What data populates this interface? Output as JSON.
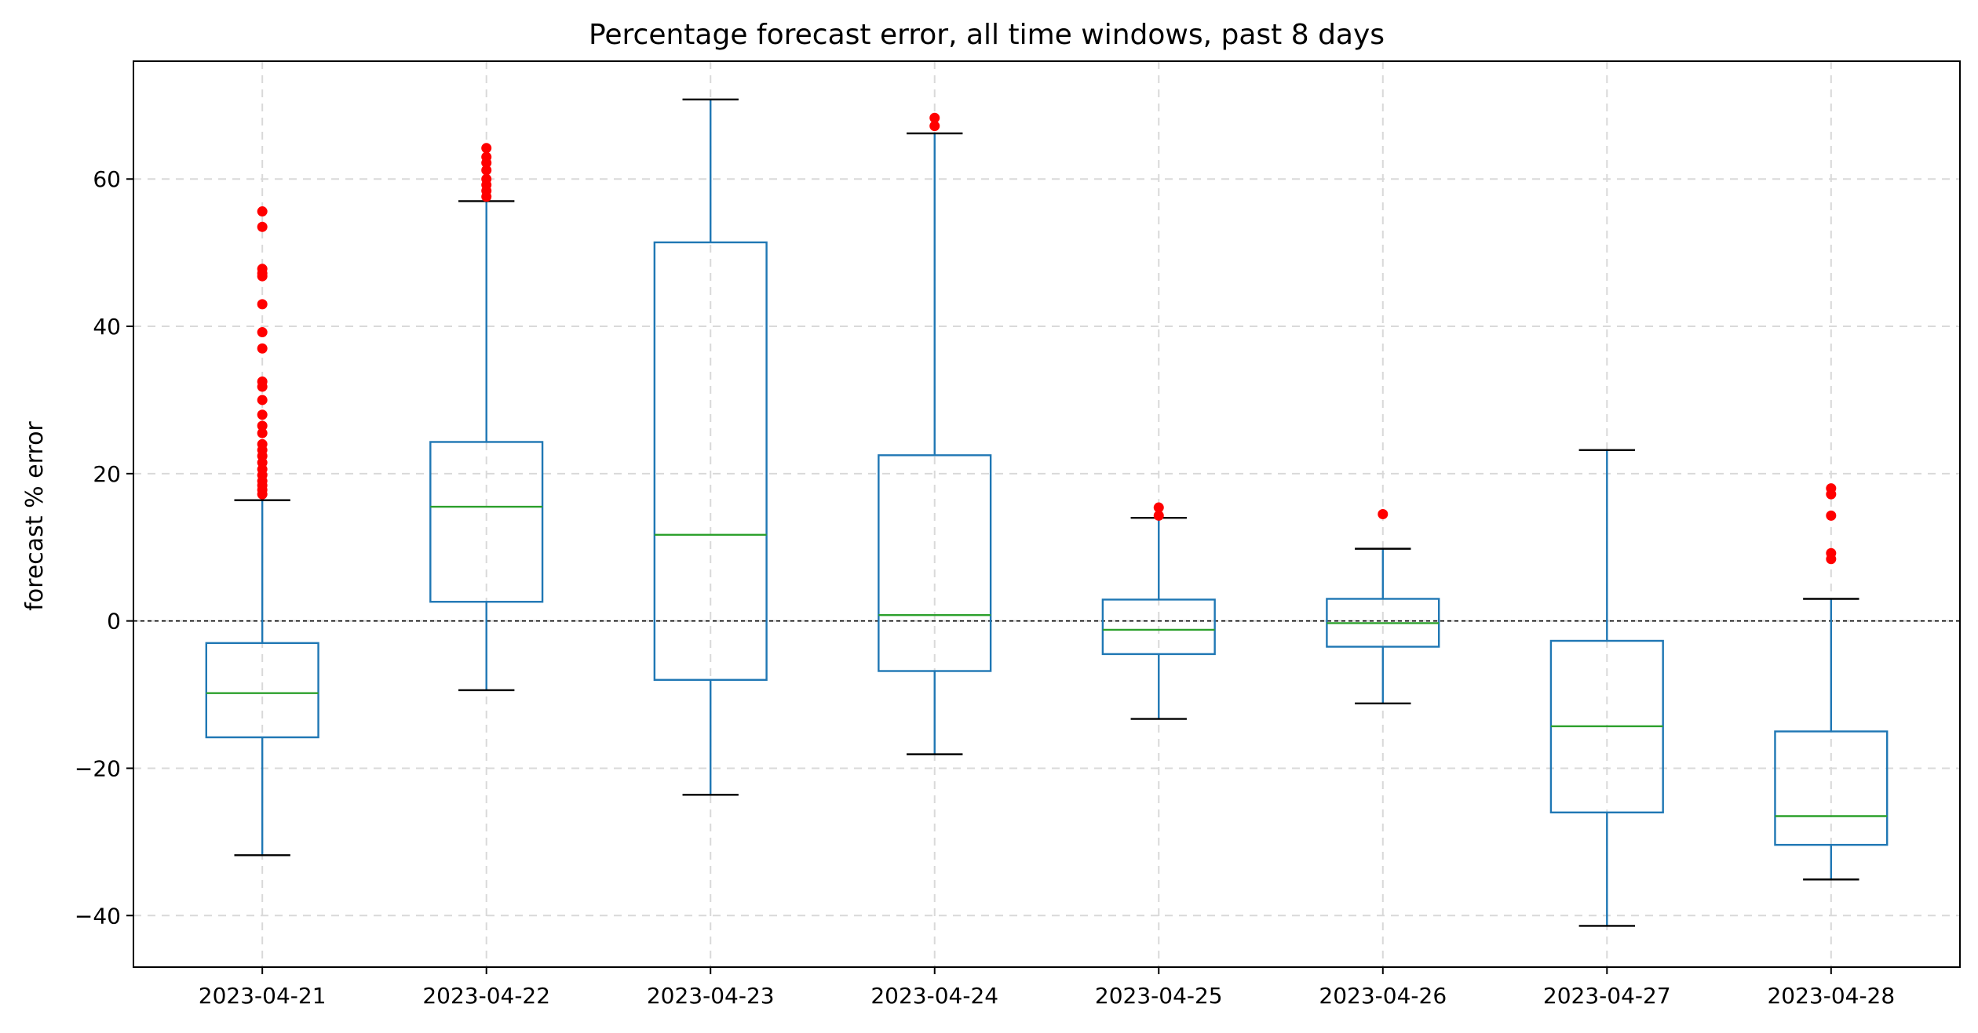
{
  "chart_data": {
    "type": "box",
    "title": "Percentage forecast error, all time windows, past 8 days",
    "xlabel": "",
    "ylabel": "forecast % error",
    "ylim": [
      -47,
      76
    ],
    "yticks": [
      -40,
      -20,
      0,
      20,
      40,
      60
    ],
    "grid": true,
    "reference_line": 0,
    "colors": {
      "box": "#1f77b4",
      "median": "#2ca02c",
      "caps": "#000000",
      "outliers": "#ff0000",
      "grid": "#d9d9d9",
      "zero_line": "#000000"
    },
    "categories": [
      "2023-04-21",
      "2023-04-22",
      "2023-04-23",
      "2023-04-24",
      "2023-04-25",
      "2023-04-26",
      "2023-04-27",
      "2023-04-28"
    ],
    "boxes": [
      {
        "label": "2023-04-21",
        "whisker_low": -31.8,
        "q1": -15.8,
        "median": -9.8,
        "q3": -3.0,
        "whisker_high": 16.4,
        "outliers": [
          55.6,
          53.5,
          47.8,
          47.2,
          46.8,
          43.0,
          39.2,
          37.0,
          32.5,
          31.8,
          30.0,
          28.0,
          26.5,
          25.5,
          24.0,
          23.2,
          22.4,
          21.5,
          20.6,
          19.8,
          19.0,
          18.4,
          17.8,
          17.2
        ]
      },
      {
        "label": "2023-04-22",
        "whisker_low": -9.4,
        "q1": 2.6,
        "median": 15.5,
        "q3": 24.3,
        "whisker_high": 57.0,
        "outliers": [
          64.2,
          63.0,
          62.2,
          61.2,
          60.0,
          59.2,
          58.4,
          57.6
        ]
      },
      {
        "label": "2023-04-23",
        "whisker_low": -23.6,
        "q1": -8.0,
        "median": 11.7,
        "q3": 51.4,
        "whisker_high": 70.8,
        "outliers": []
      },
      {
        "label": "2023-04-24",
        "whisker_low": -18.1,
        "q1": -6.8,
        "median": 0.8,
        "q3": 22.5,
        "whisker_high": 66.2,
        "outliers": [
          68.3,
          67.2
        ]
      },
      {
        "label": "2023-04-25",
        "whisker_low": -13.3,
        "q1": -4.5,
        "median": -1.2,
        "q3": 2.9,
        "whisker_high": 14.0,
        "outliers": [
          15.4,
          14.3
        ]
      },
      {
        "label": "2023-04-26",
        "whisker_low": -11.2,
        "q1": -3.5,
        "median": -0.3,
        "q3": 3.0,
        "whisker_high": 9.8,
        "outliers": [
          14.5
        ]
      },
      {
        "label": "2023-04-27",
        "whisker_low": -41.4,
        "q1": -26.0,
        "median": -14.3,
        "q3": -2.7,
        "whisker_high": 23.2,
        "outliers": []
      },
      {
        "label": "2023-04-28",
        "whisker_low": -35.1,
        "q1": -30.4,
        "median": -26.5,
        "q3": -15.0,
        "whisker_high": 3.0,
        "outliers": [
          18.0,
          17.2,
          14.3,
          9.2,
          8.4
        ]
      }
    ]
  }
}
